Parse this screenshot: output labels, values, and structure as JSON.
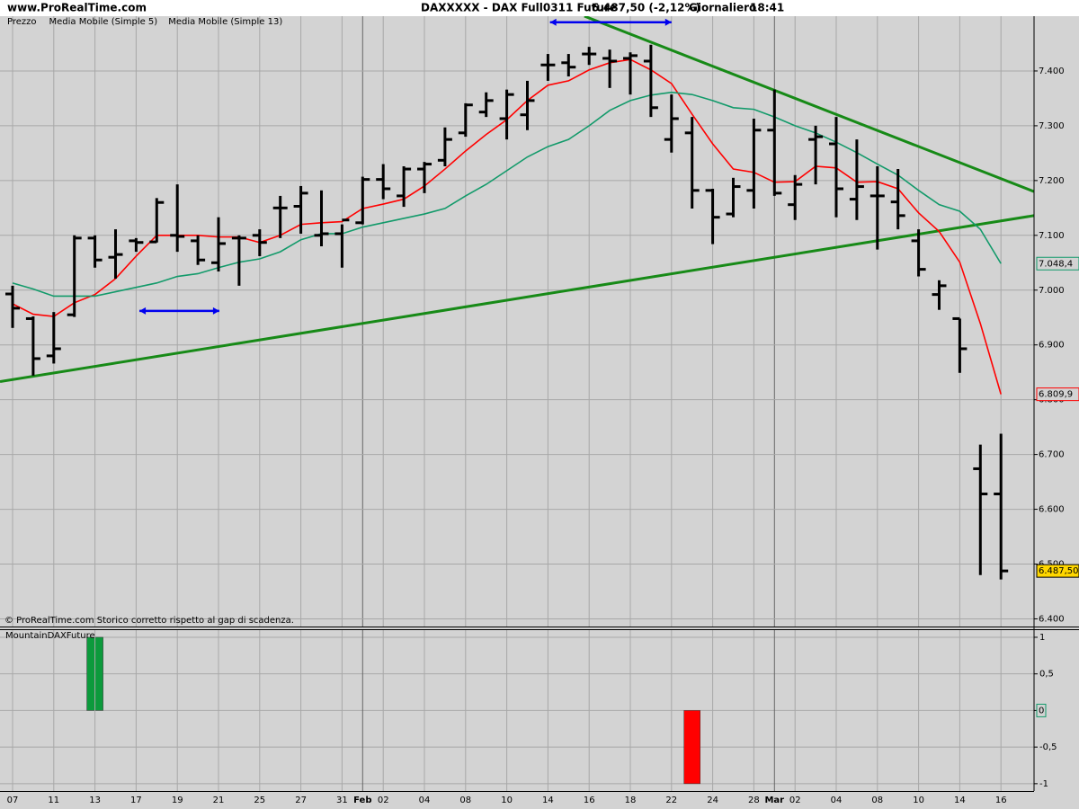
{
  "header": {
    "site": "www.ProRealTime.com",
    "instrument": "DAXXXXX - DAX Full0311 Future",
    "last": "6.487,50 (-2,12%)",
    "period": "Giornaliero",
    "time": "18:41"
  },
  "chart_data": [
    {
      "type": "ohlc",
      "note": "© ProRealTime.com  Storico corretto rispetto al gap di scadenza.",
      "categories": [
        "07",
        null,
        "11",
        null,
        "13",
        null,
        "17",
        null,
        "19",
        null,
        "21",
        null,
        "25",
        null,
        "27",
        null,
        "31",
        "Feb",
        "02",
        null,
        "04",
        null,
        "08",
        null,
        "10",
        null,
        "14",
        null,
        "16",
        null,
        "18",
        null,
        "22",
        null,
        "24",
        null,
        "28",
        "Mar",
        "02",
        null,
        "04",
        null,
        "08",
        null,
        "10",
        null,
        "14",
        null,
        "16"
      ],
      "ylim": [
        6386,
        7500
      ],
      "yticks": [
        {
          "value": 6400,
          "label": "6.400"
        },
        {
          "value": 6500,
          "label": "6.500"
        },
        {
          "value": 6600,
          "label": "6.600"
        },
        {
          "value": 6700,
          "label": "6.700"
        },
        {
          "value": 6800,
          "label": "6.800"
        },
        {
          "value": 6900,
          "label": "6.900"
        },
        {
          "value": 7000,
          "label": "7.000"
        },
        {
          "value": 7100,
          "label": "7.100"
        },
        {
          "value": 7200,
          "label": "7.200"
        },
        {
          "value": 7300,
          "label": "7.300"
        },
        {
          "value": 7400,
          "label": "7.400"
        }
      ],
      "grid": true,
      "price": {
        "name": "Prezzo",
        "color": "#000000",
        "open": [
          6993,
          6948,
          6880,
          6955,
          7095,
          7060,
          7090,
          7088,
          7100,
          7090,
          7050,
          7095,
          7100,
          7150,
          7153,
          7100,
          7103,
          7123,
          7202,
          7172,
          7221,
          7237,
          7287,
          7325,
          7313,
          7320,
          7411,
          7415,
          7431,
          7423,
          7423,
          7418,
          7275,
          7287,
          7182,
          7139,
          7182,
          7292,
          7156,
          7275,
          7267,
          7166,
          7172,
          7161,
          7090,
          6992,
          6948,
          6674,
          6628
        ],
        "high": [
          7008,
          6952,
          6960,
          7100,
          7100,
          7111,
          7095,
          7168,
          7193,
          7100,
          7133,
          7100,
          7111,
          7172,
          7190,
          7182,
          7120,
          7207,
          7230,
          7226,
          7234,
          7297,
          7341,
          7361,
          7366,
          7382,
          7431,
          7431,
          7444,
          7439,
          7434,
          7448,
          7357,
          7316,
          7185,
          7205,
          7313,
          7366,
          7210,
          7300,
          7316,
          7275,
          7226,
          7221,
          7111,
          7018,
          6948,
          6718,
          6738
        ],
        "low": [
          6931,
          6844,
          6866,
          6951,
          7041,
          7021,
          7070,
          7087,
          7070,
          7046,
          7034,
          7008,
          7062,
          7095,
          7103,
          7080,
          7041,
          7120,
          7166,
          7152,
          7177,
          7226,
          7280,
          7316,
          7275,
          7292,
          7382,
          7390,
          7411,
          7369,
          7357,
          7316,
          7251,
          7149,
          7084,
          7133,
          7149,
          7172,
          7128,
          7193,
          7133,
          7128,
          7074,
          7111,
          7025,
          6964,
          6849,
          6480,
          6472
        ],
        "close": [
          6967,
          6875,
          6893,
          7095,
          7055,
          7065,
          7087,
          7160,
          7098,
          7055,
          7085,
          7095,
          7087,
          7150,
          7177,
          7103,
          7128,
          7202,
          7185,
          7221,
          7230,
          7275,
          7338,
          7346,
          7357,
          7346,
          7411,
          7407,
          7431,
          7418,
          7428,
          7333,
          7313,
          7182,
          7133,
          7189,
          7292,
          7177,
          7193,
          7280,
          7185,
          7189,
          7172,
          7136,
          7038,
          7008,
          6893,
          6628,
          6487.5
        ],
        "value_labels": [
          null,
          null,
          null,
          null,
          null,
          null,
          null,
          null,
          null,
          null,
          null,
          null,
          null,
          null,
          null,
          null,
          null,
          null,
          null,
          null,
          null,
          null,
          null,
          null,
          null,
          null,
          null,
          null,
          null,
          null,
          null,
          null,
          null,
          null,
          null,
          null,
          null,
          null,
          null,
          null,
          null,
          null,
          null,
          null,
          null,
          null,
          null,
          null,
          "6.487,50"
        ]
      },
      "series": [
        {
          "name": "Media Mobile (Simple 5)",
          "color": "#ff0000",
          "values": [
            6975,
            6956,
            6952,
            6977,
            6992,
            7021,
            7062,
            7100,
            7100,
            7100,
            7097,
            7097,
            7087,
            7100,
            7120,
            7123,
            7125,
            7149,
            7157,
            7166,
            7190,
            7221,
            7254,
            7284,
            7311,
            7346,
            7374,
            7382,
            7402,
            7415,
            7421,
            7402,
            7377,
            7321,
            7267,
            7221,
            7215,
            7197,
            7198,
            7226,
            7223,
            7197,
            7198,
            7185,
            7141,
            7107,
            7051,
            6939,
            6809.9
          ],
          "value_labels": [
            null,
            null,
            null,
            null,
            null,
            null,
            null,
            null,
            null,
            null,
            null,
            null,
            null,
            null,
            null,
            null,
            null,
            null,
            null,
            null,
            null,
            null,
            null,
            null,
            null,
            null,
            null,
            null,
            null,
            null,
            null,
            null,
            null,
            null,
            null,
            null,
            null,
            null,
            null,
            null,
            null,
            null,
            null,
            null,
            null,
            null,
            null,
            null,
            "6.809,9"
          ]
        },
        {
          "name": "Media Mobile (Simple 13)",
          "color": "#129a6a",
          "values": [
            7013,
            7002,
            6989,
            6989,
            6989,
            6997,
            7005,
            7013,
            7025,
            7030,
            7041,
            7051,
            7057,
            7070,
            7092,
            7103,
            7103,
            7115,
            7123,
            7131,
            7139,
            7149,
            7172,
            7193,
            7218,
            7243,
            7262,
            7275,
            7300,
            7328,
            7346,
            7356,
            7361,
            7357,
            7346,
            7333,
            7330,
            7316,
            7300,
            7287,
            7270,
            7251,
            7230,
            7210,
            7182,
            7156,
            7144,
            7111,
            7048.4
          ],
          "value_labels": [
            null,
            null,
            null,
            null,
            null,
            null,
            null,
            null,
            null,
            null,
            null,
            null,
            null,
            null,
            null,
            null,
            null,
            null,
            null,
            null,
            null,
            null,
            null,
            null,
            null,
            null,
            null,
            null,
            null,
            null,
            null,
            null,
            null,
            null,
            null,
            null,
            null,
            null,
            null,
            null,
            null,
            null,
            null,
            null,
            null,
            null,
            null,
            null,
            "7.048,4"
          ]
        }
      ],
      "trendlines": [
        {
          "color": "#178a17",
          "x": [
            -0.611,
            49.6
          ],
          "y": [
            6833,
            7136
          ]
        },
        {
          "color": "#178a17",
          "x": [
            27.77,
            49.6
          ],
          "y": [
            7500,
            7180
          ]
        }
      ],
      "arrows": [
        {
          "color": "#0000ee",
          "x": [
            6.16,
            10.04
          ],
          "y": [
            6962,
            6962
          ]
        },
        {
          "color": "#0000ee",
          "x": [
            26.1,
            32.0
          ],
          "y": [
            7489,
            7489
          ]
        }
      ]
    },
    {
      "type": "bar",
      "title": "MountainDAXFuture",
      "ylim": [
        -1.1,
        1.11
      ],
      "yticks": [
        1,
        {
          "value": 0.5,
          "label": "0,5"
        },
        0,
        {
          "value": -0.5,
          "label": "-0,5"
        },
        -1
      ],
      "up_color": "#0c9a3c",
      "down_color": "#ff0000",
      "values": [
        0,
        0,
        0,
        0,
        1,
        0,
        0,
        0,
        0,
        0,
        0,
        0,
        0,
        0,
        0,
        0,
        0,
        0,
        0,
        0,
        0,
        0,
        0,
        0,
        0,
        0,
        0,
        0,
        0,
        0,
        0,
        0,
        0,
        -1,
        0,
        0,
        0,
        0,
        0,
        0,
        0,
        0,
        0,
        0,
        0,
        0,
        0,
        0,
        0
      ]
    }
  ]
}
